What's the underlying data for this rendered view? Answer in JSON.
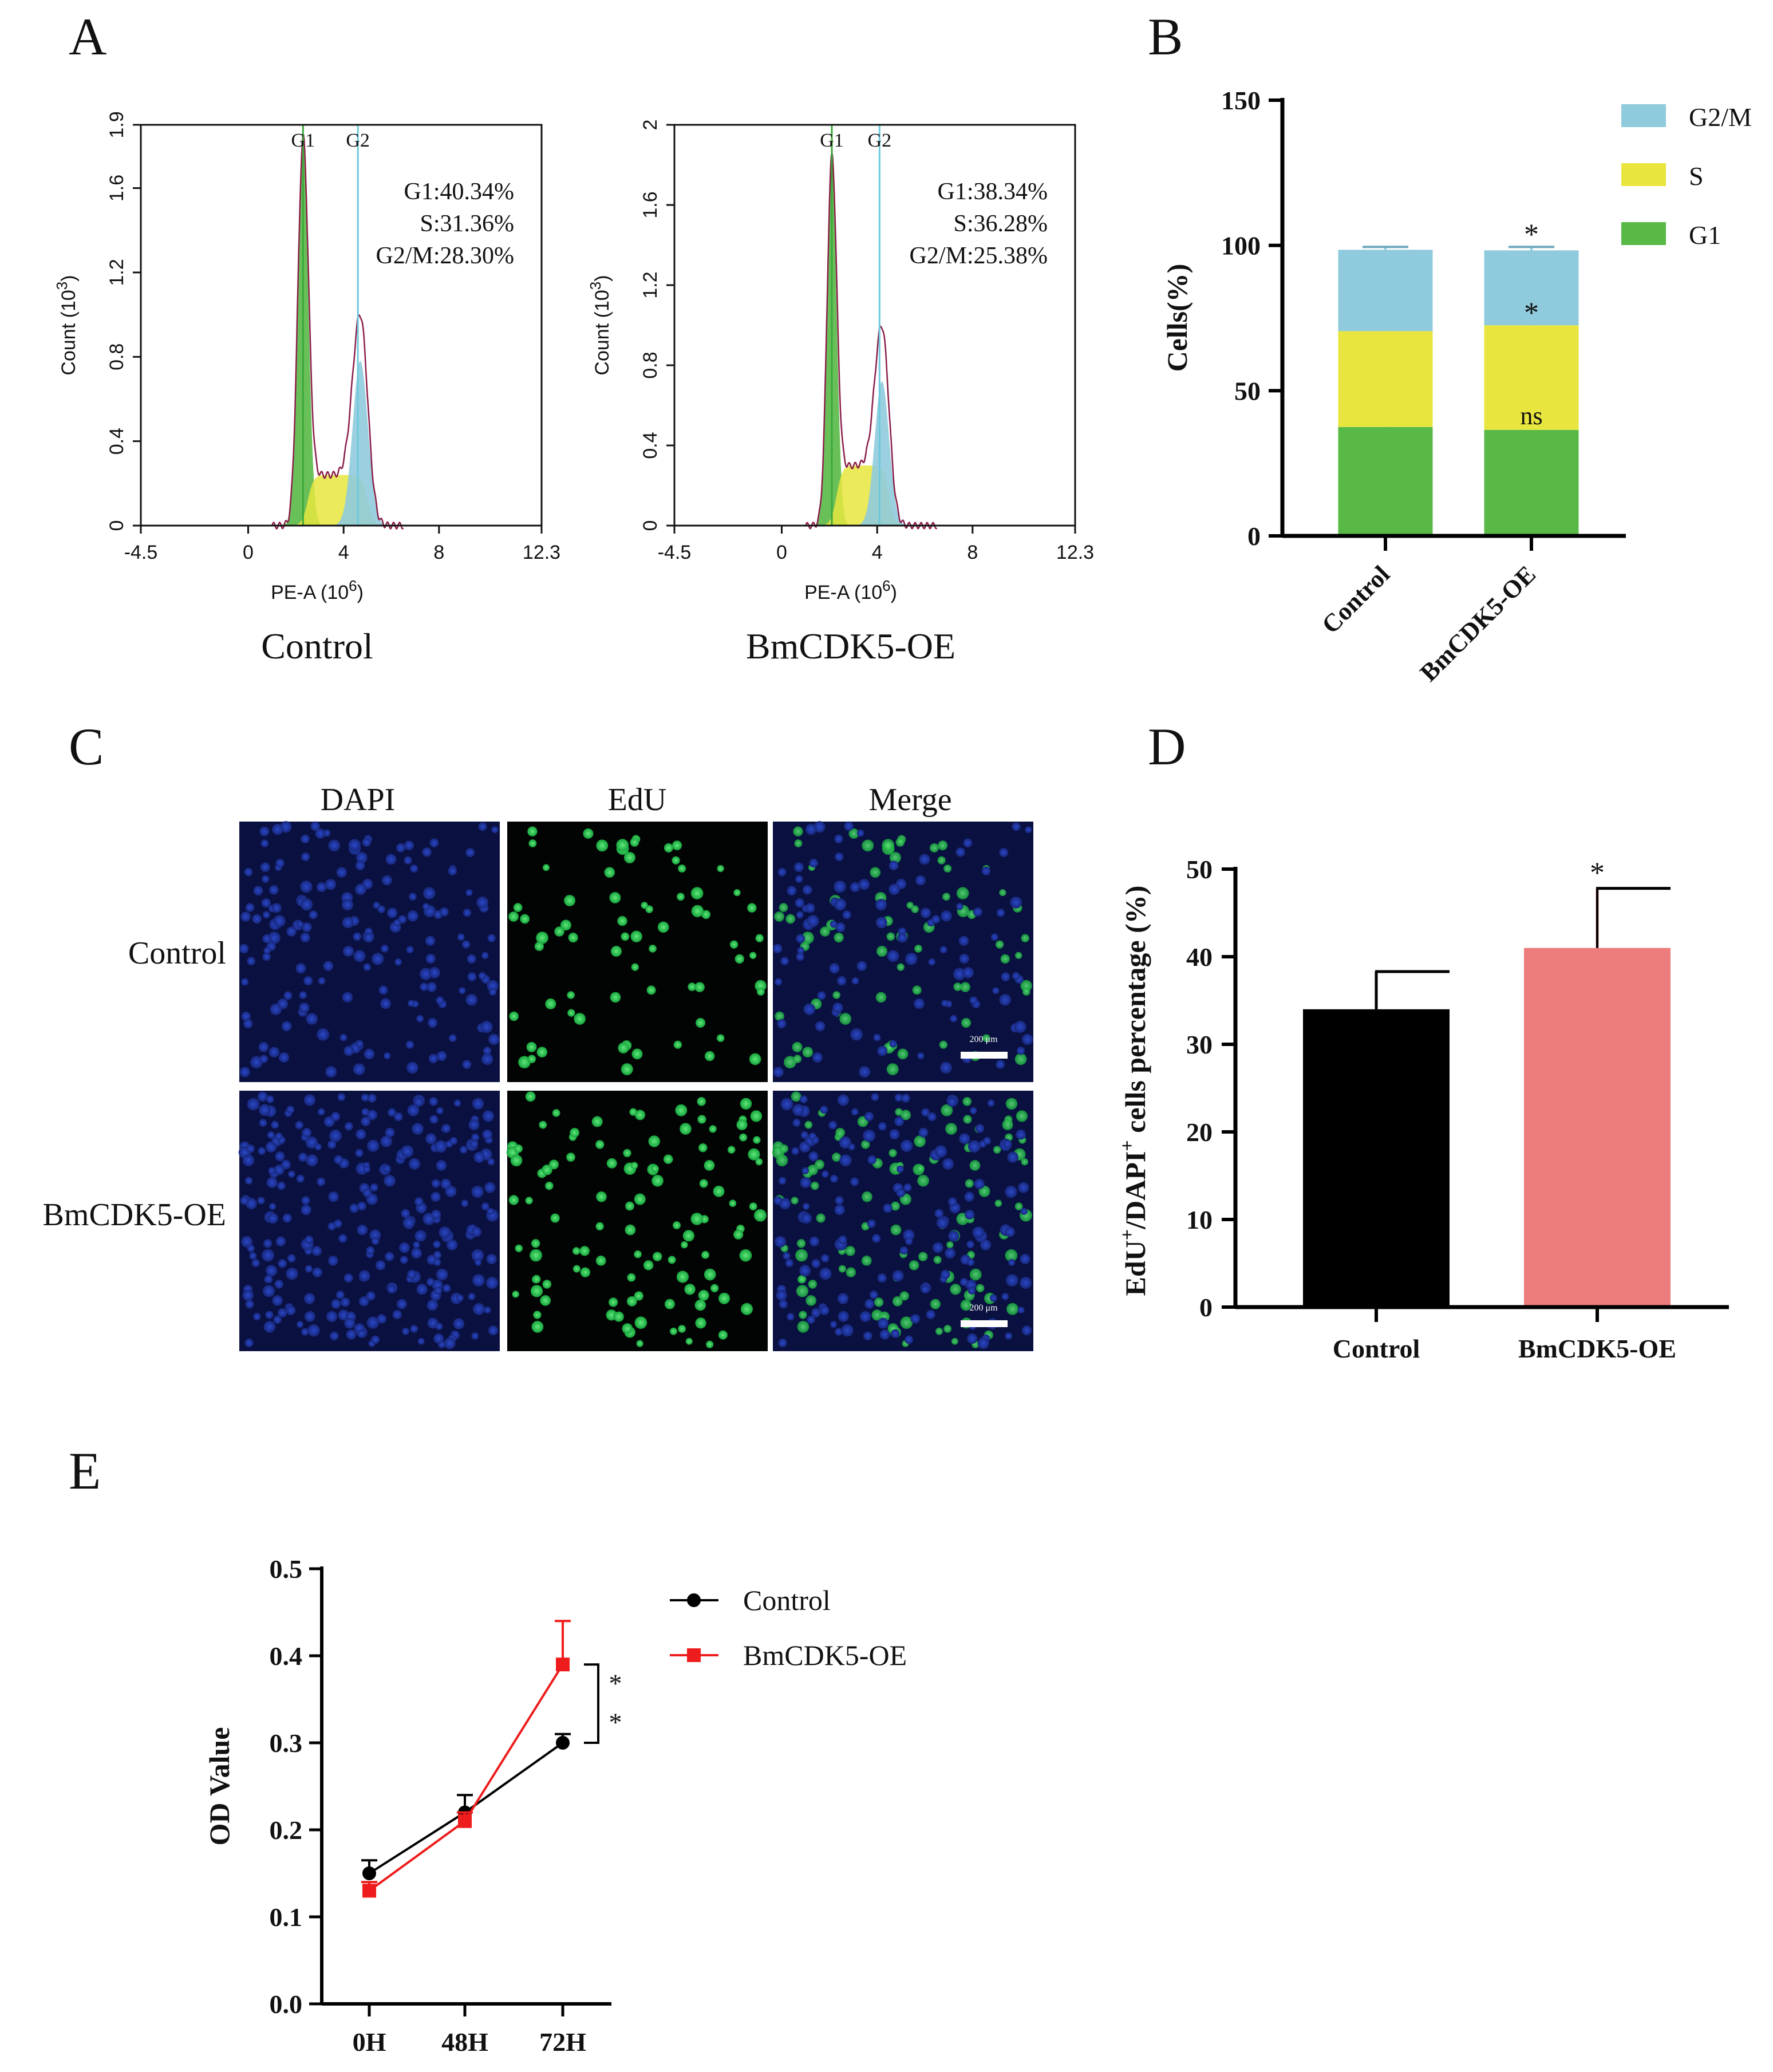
{
  "panel_labels": {
    "a": "A",
    "b": "B",
    "c": "C",
    "d": "D",
    "e": "E"
  },
  "colors": {
    "g1": "#59b947",
    "s": "#e8e63e",
    "g2m": "#8fcbdc",
    "g1_line": "#3aa83a",
    "g2_line": "#6ec9dd",
    "black": "#000000",
    "salmon": "#ed7c7c",
    "red": "#ee1c1c",
    "nuclei_blue": "#1c2f8e",
    "nuclei_green": "#27c34e"
  },
  "chart_data": [
    {
      "id": "A1",
      "type": "histogram",
      "caption": "Control",
      "xlabel_main": "PE-A",
      "xlabel_unit": "(10",
      "xlabel_exp": "6",
      "xlabel_close": ")",
      "ylabel_main": "Count",
      "ylabel_unit": "(10",
      "ylabel_exp": "3",
      "ylabel_close": ")",
      "xlim": [
        -4.5,
        12.3
      ],
      "ylim": [
        0,
        1.9
      ],
      "xticks": [
        "-4.5",
        "0",
        "4",
        "8",
        "12.3"
      ],
      "xtick_values": [
        -4.5,
        0,
        4,
        8,
        12.3
      ],
      "yticks": [
        "0",
        "0.4",
        "0.8",
        "1.2",
        "1.6",
        "1.9"
      ],
      "ytick_values": [
        0,
        0.4,
        0.8,
        1.2,
        1.6,
        1.9
      ],
      "gates": [
        {
          "label": "G1",
          "x": 2.3
        },
        {
          "label": "G2",
          "x": 4.6
        }
      ],
      "stats": [
        "G1:40.34%",
        "S:31.36%",
        "G2/M:28.30%"
      ],
      "g1_peak": {
        "center": 2.3,
        "height": 1.8,
        "width": 0.22
      },
      "g2_peak": {
        "center": 4.7,
        "height": 0.78,
        "width": 0.32
      },
      "s_phase": {
        "from": 2.5,
        "to": 4.6,
        "level": 0.24
      }
    },
    {
      "id": "A2",
      "type": "histogram",
      "caption": "BmCDK5-OE",
      "xlabel_main": "PE-A",
      "xlabel_unit": "(10",
      "xlabel_exp": "6",
      "xlabel_close": ")",
      "ylabel_main": "Count",
      "ylabel_unit": "(10",
      "ylabel_exp": "3",
      "ylabel_close": ")",
      "xlim": [
        -4.5,
        12.3
      ],
      "ylim": [
        0,
        2
      ],
      "xticks": [
        "-4.5",
        "0",
        "4",
        "8",
        "12.3"
      ],
      "xtick_values": [
        -4.5,
        0,
        4,
        8,
        12.3
      ],
      "yticks": [
        "0",
        "0.4",
        "0.8",
        "1.2",
        "1.6",
        "2"
      ],
      "ytick_values": [
        0,
        0.4,
        0.8,
        1.2,
        1.6,
        2
      ],
      "gates": [
        {
          "label": "G1",
          "x": 2.1
        },
        {
          "label": "G2",
          "x": 4.1
        }
      ],
      "stats": [
        "G1:38.34%",
        "S:36.28%",
        "G2/M:25.38%"
      ],
      "g1_peak": {
        "center": 2.1,
        "height": 1.8,
        "width": 0.2
      },
      "g2_peak": {
        "center": 4.2,
        "height": 0.72,
        "width": 0.3
      },
      "s_phase": {
        "from": 2.3,
        "to": 4.1,
        "level": 0.3
      }
    },
    {
      "id": "B",
      "type": "stacked-bar",
      "categories": [
        "Control",
        "BmCDK5-OE"
      ],
      "ylabel": "Cells(%)",
      "ylim": [
        0,
        150
      ],
      "yticks": [
        "0",
        "50",
        "100",
        "150"
      ],
      "ytick_values": [
        0,
        50,
        100,
        150
      ],
      "series": [
        {
          "name": "G1",
          "color": "#59b947",
          "values": [
            37.5,
            36.5
          ],
          "errors": [
            2,
            0
          ]
        },
        {
          "name": "S",
          "color": "#e8e63e",
          "values": [
            33,
            36
          ],
          "errors": [
            1.5,
            0.8
          ]
        },
        {
          "name": "G2/M",
          "color": "#8fcbdc",
          "values": [
            28,
            25.8
          ],
          "errors": [
            1,
            1.2
          ]
        }
      ],
      "legend_order": [
        "G2/M",
        "S",
        "G1"
      ],
      "annotations": [
        {
          "text": "*",
          "category": 1,
          "y": 104
        },
        {
          "text": "*",
          "category": 1,
          "y": 77
        },
        {
          "text": "ns",
          "category": 1,
          "y": 42
        }
      ]
    },
    {
      "id": "D",
      "type": "bar",
      "categories": [
        "Control",
        "BmCDK5-OE"
      ],
      "values": [
        34,
        41
      ],
      "errors": [
        4.3,
        6.8
      ],
      "colors": [
        "#000000",
        "#ed7c7c"
      ],
      "ylabel_a": "EdU",
      "ylabel_sup1": "+",
      "ylabel_b": "/DAPI",
      "ylabel_sup2": "+",
      "ylabel_c": " cells percentage (%)",
      "ylim": [
        0,
        50
      ],
      "yticks": [
        "0",
        "10",
        "20",
        "30",
        "40",
        "50"
      ],
      "ytick_values": [
        0,
        10,
        20,
        30,
        40,
        50
      ],
      "annotation": "*"
    },
    {
      "id": "E",
      "type": "line",
      "x": [
        "0H",
        "48H",
        "72H"
      ],
      "ylabel": "OD Value",
      "ylim": [
        0,
        0.5
      ],
      "yticks": [
        "0.0",
        "0.1",
        "0.2",
        "0.3",
        "0.4",
        "0.5"
      ],
      "ytick_values": [
        0,
        0.1,
        0.2,
        0.3,
        0.4,
        0.5
      ],
      "series": [
        {
          "name": "Control",
          "color": "#000000",
          "marker": "circle",
          "values": [
            0.15,
            0.22,
            0.3
          ],
          "errors": [
            0.015,
            0.02,
            0.01
          ]
        },
        {
          "name": "BmCDK5-OE",
          "color": "#ee1c1c",
          "marker": "square",
          "values": [
            0.13,
            0.21,
            0.39
          ],
          "errors": [
            0.01,
            0.01,
            0.05
          ]
        }
      ],
      "annotation": [
        "*",
        "*"
      ]
    }
  ],
  "panelC": {
    "columns": [
      "DAPI",
      "EdU",
      "Merge"
    ],
    "rows": [
      "Control",
      "BmCDK5-OE"
    ],
    "scale_label": "200 μm"
  }
}
